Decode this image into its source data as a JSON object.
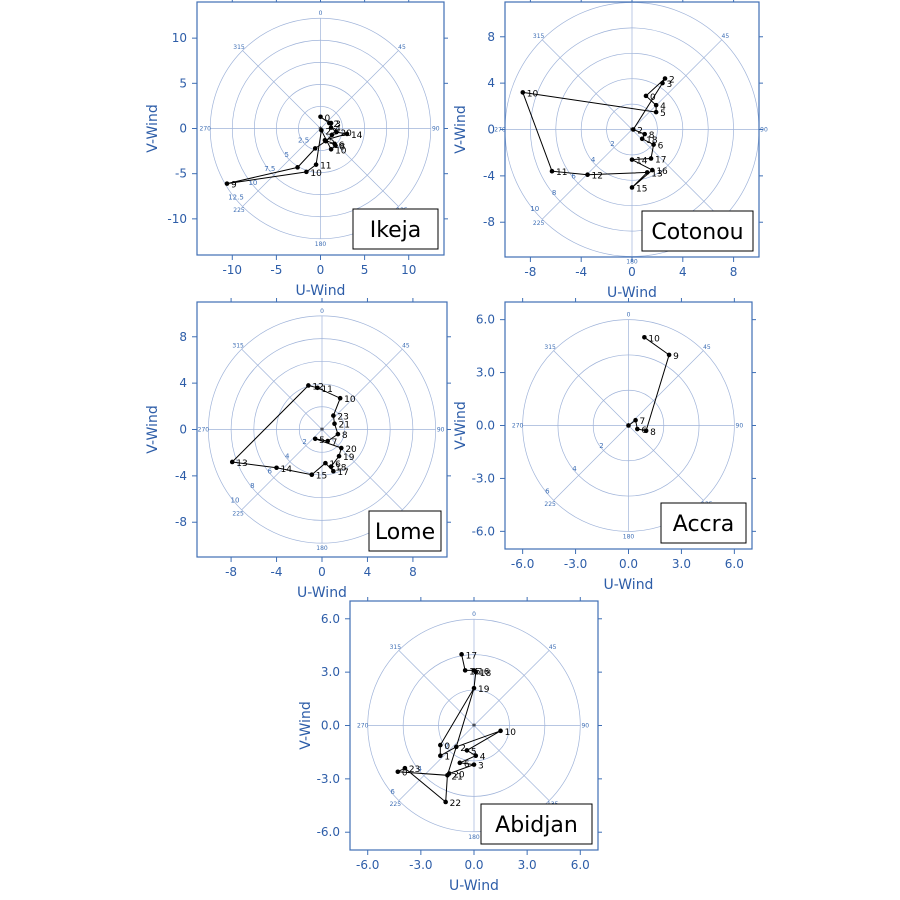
{
  "chart_data": [
    {
      "type": "scatter",
      "station": "Ikeja",
      "xlabel": "U-Wind",
      "ylabel": "V-Wind",
      "xlim": [
        -14,
        14
      ],
      "ylim": [
        -14,
        14
      ],
      "xticks": [
        "-10",
        "-5",
        "0",
        "5",
        "10"
      ],
      "xtick_values": [
        -10,
        -5,
        0,
        5,
        10
      ],
      "yticks": [
        "10",
        "5",
        "0",
        "-5",
        "-10"
      ],
      "ytick_values": [
        10,
        5,
        0,
        -5,
        -10
      ],
      "ring_labels": [
        "2.5",
        "5",
        "7.5",
        "10",
        "12.5"
      ],
      "ring_values": [
        2.5,
        5,
        7.5,
        10,
        12.5
      ],
      "azimuth_labels": [
        "0",
        "45",
        "90",
        "135",
        "180",
        "225",
        "270",
        "315"
      ],
      "points": [
        {
          "label": "0",
          "u": 0.0,
          "v": 1.3
        },
        {
          "label": "2",
          "u": 1.0,
          "v": 0.6
        },
        {
          "label": "3",
          "u": 1.2,
          "v": 0.6
        },
        {
          "label": "4",
          "u": 1.2,
          "v": 0.1
        },
        {
          "label": "20",
          "u": 1.8,
          "v": -0.4
        },
        {
          "label": "14",
          "u": 3.0,
          "v": -0.6
        },
        {
          "label": "5",
          "u": 0.5,
          "v": -1.3
        },
        {
          "label": "6",
          "u": 1.6,
          "v": -1.7
        },
        {
          "label": "8",
          "u": 1.7,
          "v": -1.9
        },
        {
          "label": "10",
          "u": 1.2,
          "v": -2.3
        },
        {
          "label": "22",
          "u": 0.1,
          "v": -0.2
        },
        {
          "label": "11",
          "u": -0.5,
          "v": -4.0
        },
        {
          "label": "10",
          "u": -1.6,
          "v": -4.8
        },
        {
          "label": "9",
          "u": -10.6,
          "v": -6.1
        },
        {
          "label": "",
          "u": -2.6,
          "v": -4.3
        },
        {
          "label": "",
          "u": -0.6,
          "v": -2.2
        },
        {
          "label": "",
          "u": 0.6,
          "v": -1.4
        },
        {
          "label": "",
          "u": 1.3,
          "v": -0.7
        }
      ]
    },
    {
      "type": "scatter",
      "station": "Cotonou",
      "xlabel": "U-Wind",
      "ylabel": "V-Wind",
      "xlim": [
        -10,
        10
      ],
      "ylim": [
        -11,
        11
      ],
      "xticks": [
        "-8",
        "-4",
        "0",
        "4",
        "8"
      ],
      "xtick_values": [
        -8,
        -4,
        0,
        4,
        8
      ],
      "yticks": [
        "8",
        "4",
        "0",
        "-4",
        "-8"
      ],
      "ytick_values": [
        8,
        4,
        0,
        -4,
        -8
      ],
      "ring_labels": [
        "2",
        "4",
        "6",
        "8",
        "10"
      ],
      "ring_values": [
        2,
        4,
        6,
        8,
        10
      ],
      "azimuth_labels": [
        "0",
        "45",
        "90",
        "135",
        "180",
        "225",
        "270",
        "315"
      ],
      "points": [
        {
          "label": "2",
          "u": 2.6,
          "v": 4.4
        },
        {
          "label": "3",
          "u": 2.4,
          "v": 4.0
        },
        {
          "label": "0",
          "u": 1.1,
          "v": 2.9
        },
        {
          "label": "4",
          "u": 1.9,
          "v": 2.1
        },
        {
          "label": "5",
          "u": 1.9,
          "v": 1.5
        },
        {
          "label": "10",
          "u": -8.6,
          "v": 3.2
        },
        {
          "label": "2",
          "u": 0.1,
          "v": 0.0
        },
        {
          "label": "8",
          "u": 1.0,
          "v": -0.4
        },
        {
          "label": "18",
          "u": 0.8,
          "v": -0.8
        },
        {
          "label": "6",
          "u": 1.7,
          "v": -1.3
        },
        {
          "label": "17",
          "u": 1.5,
          "v": -2.5
        },
        {
          "label": "14",
          "u": 0.0,
          "v": -2.6
        },
        {
          "label": "16",
          "u": 1.6,
          "v": -3.5
        },
        {
          "label": "13",
          "u": 1.2,
          "v": -3.7
        },
        {
          "label": "11",
          "u": -6.3,
          "v": -3.6
        },
        {
          "label": "12",
          "u": -3.5,
          "v": -3.9
        },
        {
          "label": "15",
          "u": 0.0,
          "v": -5.0
        }
      ],
      "path_order": [
        5,
        4,
        3,
        2,
        0,
        1,
        6,
        7,
        8,
        9,
        10,
        11,
        12,
        16,
        13,
        15,
        14,
        5
      ]
    },
    {
      "type": "scatter",
      "station": "Lome",
      "xlabel": "U-Wind",
      "ylabel": "V-Wind",
      "xlim": [
        -11,
        11
      ],
      "ylim": [
        -11,
        11
      ],
      "xticks": [
        "-8",
        "-4",
        "0",
        "4",
        "8"
      ],
      "xtick_values": [
        -8,
        -4,
        0,
        4,
        8
      ],
      "yticks": [
        "8",
        "4",
        "0",
        "-4",
        "-8"
      ],
      "ytick_values": [
        8,
        4,
        0,
        -4,
        -8
      ],
      "ring_labels": [
        "2",
        "4",
        "6",
        "8",
        "10"
      ],
      "ring_values": [
        2,
        4,
        6,
        8,
        10
      ],
      "azimuth_labels": [
        "0",
        "45",
        "90",
        "135",
        "180",
        "225",
        "270",
        "315"
      ],
      "points": [
        {
          "label": "12",
          "u": -1.2,
          "v": 3.8
        },
        {
          "label": "11",
          "u": -0.4,
          "v": 3.6
        },
        {
          "label": "10",
          "u": 1.6,
          "v": 2.7
        },
        {
          "label": "23",
          "u": 1.0,
          "v": 1.2
        },
        {
          "label": "21",
          "u": 1.1,
          "v": 0.5
        },
        {
          "label": "8",
          "u": 1.4,
          "v": -0.4
        },
        {
          "label": "5",
          "u": -0.6,
          "v": -0.8
        },
        {
          "label": "7",
          "u": 0.5,
          "v": -1.0
        },
        {
          "label": "20",
          "u": 1.7,
          "v": -1.6
        },
        {
          "label": "19",
          "u": 1.5,
          "v": -2.3
        },
        {
          "label": "16",
          "u": 0.3,
          "v": -2.9
        },
        {
          "label": "18",
          "u": 0.8,
          "v": -3.2
        },
        {
          "label": "17",
          "u": 1.0,
          "v": -3.6
        },
        {
          "label": "15",
          "u": -0.9,
          "v": -3.9
        },
        {
          "label": "14",
          "u": -4.0,
          "v": -3.3
        },
        {
          "label": "13",
          "u": -7.9,
          "v": -2.8
        }
      ],
      "path_order": [
        0,
        1,
        2,
        3,
        4,
        5,
        7,
        6,
        8,
        9,
        11,
        12,
        10,
        13,
        14,
        15,
        0
      ]
    },
    {
      "type": "scatter",
      "station": "Accra",
      "xlabel": "U-Wind",
      "ylabel": "V-Wind",
      "xlim": [
        -7,
        7
      ],
      "ylim": [
        -7,
        7
      ],
      "xticks": [
        "-6.0",
        "-3.0",
        "0.0",
        "3.0",
        "6.0"
      ],
      "xtick_values": [
        -6,
        -3,
        0,
        3,
        6
      ],
      "yticks": [
        "6.0",
        "3.0",
        "0.0",
        "-3.0",
        "-6.0"
      ],
      "ytick_values": [
        6,
        3,
        0,
        -3,
        -6
      ],
      "ring_labels": [
        "2",
        "4",
        "6"
      ],
      "ring_values": [
        2,
        4,
        6
      ],
      "azimuth_labels": [
        "0",
        "45",
        "90",
        "135",
        "180",
        "225",
        "270",
        "315"
      ],
      "points": [
        {
          "label": "10",
          "u": 0.9,
          "v": 5.0
        },
        {
          "label": "9",
          "u": 2.3,
          "v": 4.0
        },
        {
          "label": "8",
          "u": 1.0,
          "v": -0.3
        },
        {
          "label": "6",
          "u": 0.5,
          "v": -0.2
        },
        {
          "label": "7",
          "u": 0.4,
          "v": 0.3
        },
        {
          "label": "",
          "u": 0.0,
          "v": 0.0
        }
      ],
      "path_order": [
        0,
        1,
        2,
        3,
        4,
        5
      ]
    },
    {
      "type": "scatter",
      "station": "Abidjan",
      "xlabel": "U-Wind",
      "ylabel": "V-Wind",
      "xlim": [
        -7,
        7
      ],
      "ylim": [
        -7,
        7
      ],
      "xticks": [
        "-6.0",
        "-3.0",
        "0.0",
        "3.0",
        "6.0"
      ],
      "xtick_values": [
        -6,
        -3,
        0,
        3,
        6
      ],
      "yticks": [
        "6.0",
        "3.0",
        "0.0",
        "-3.0",
        "-6.0"
      ],
      "ytick_values": [
        6,
        3,
        0,
        -3,
        -6
      ],
      "ring_labels": [
        "2",
        "4",
        "6"
      ],
      "ring_values": [
        2,
        4,
        6
      ],
      "azimuth_labels": [
        "0",
        "45",
        "90",
        "135",
        "180",
        "225",
        "270",
        "315"
      ],
      "points": [
        {
          "label": "17",
          "u": -0.7,
          "v": 4.0
        },
        {
          "label": "15",
          "u": -0.5,
          "v": 3.1
        },
        {
          "label": "16",
          "u": 0.0,
          "v": 3.1
        },
        {
          "label": "18",
          "u": 0.1,
          "v": 3.0
        },
        {
          "label": "19",
          "u": 0.0,
          "v": 2.1
        },
        {
          "label": "10",
          "u": 1.5,
          "v": -0.3
        },
        {
          "label": "0",
          "u": -1.9,
          "v": -1.1
        },
        {
          "label": "1",
          "u": -1.9,
          "v": -1.7
        },
        {
          "label": "2",
          "u": -1.0,
          "v": -1.2
        },
        {
          "label": "5",
          "u": -0.4,
          "v": -1.4
        },
        {
          "label": "4",
          "u": 0.1,
          "v": -1.7
        },
        {
          "label": "6",
          "u": -0.8,
          "v": -2.1
        },
        {
          "label": "3",
          "u": 0.0,
          "v": -2.2
        },
        {
          "label": "21",
          "u": -1.5,
          "v": -2.8
        },
        {
          "label": "20",
          "u": -1.4,
          "v": -2.7
        },
        {
          "label": "23",
          "u": -3.9,
          "v": -2.4
        },
        {
          "label": "0",
          "u": -4.3,
          "v": -2.6
        },
        {
          "label": "22",
          "u": -1.6,
          "v": -4.3
        }
      ],
      "path_order": [
        0,
        1,
        2,
        3,
        4,
        6,
        7,
        8,
        5,
        9,
        10,
        11,
        12,
        14,
        13,
        16,
        15,
        17,
        13,
        8,
        4
      ]
    }
  ]
}
